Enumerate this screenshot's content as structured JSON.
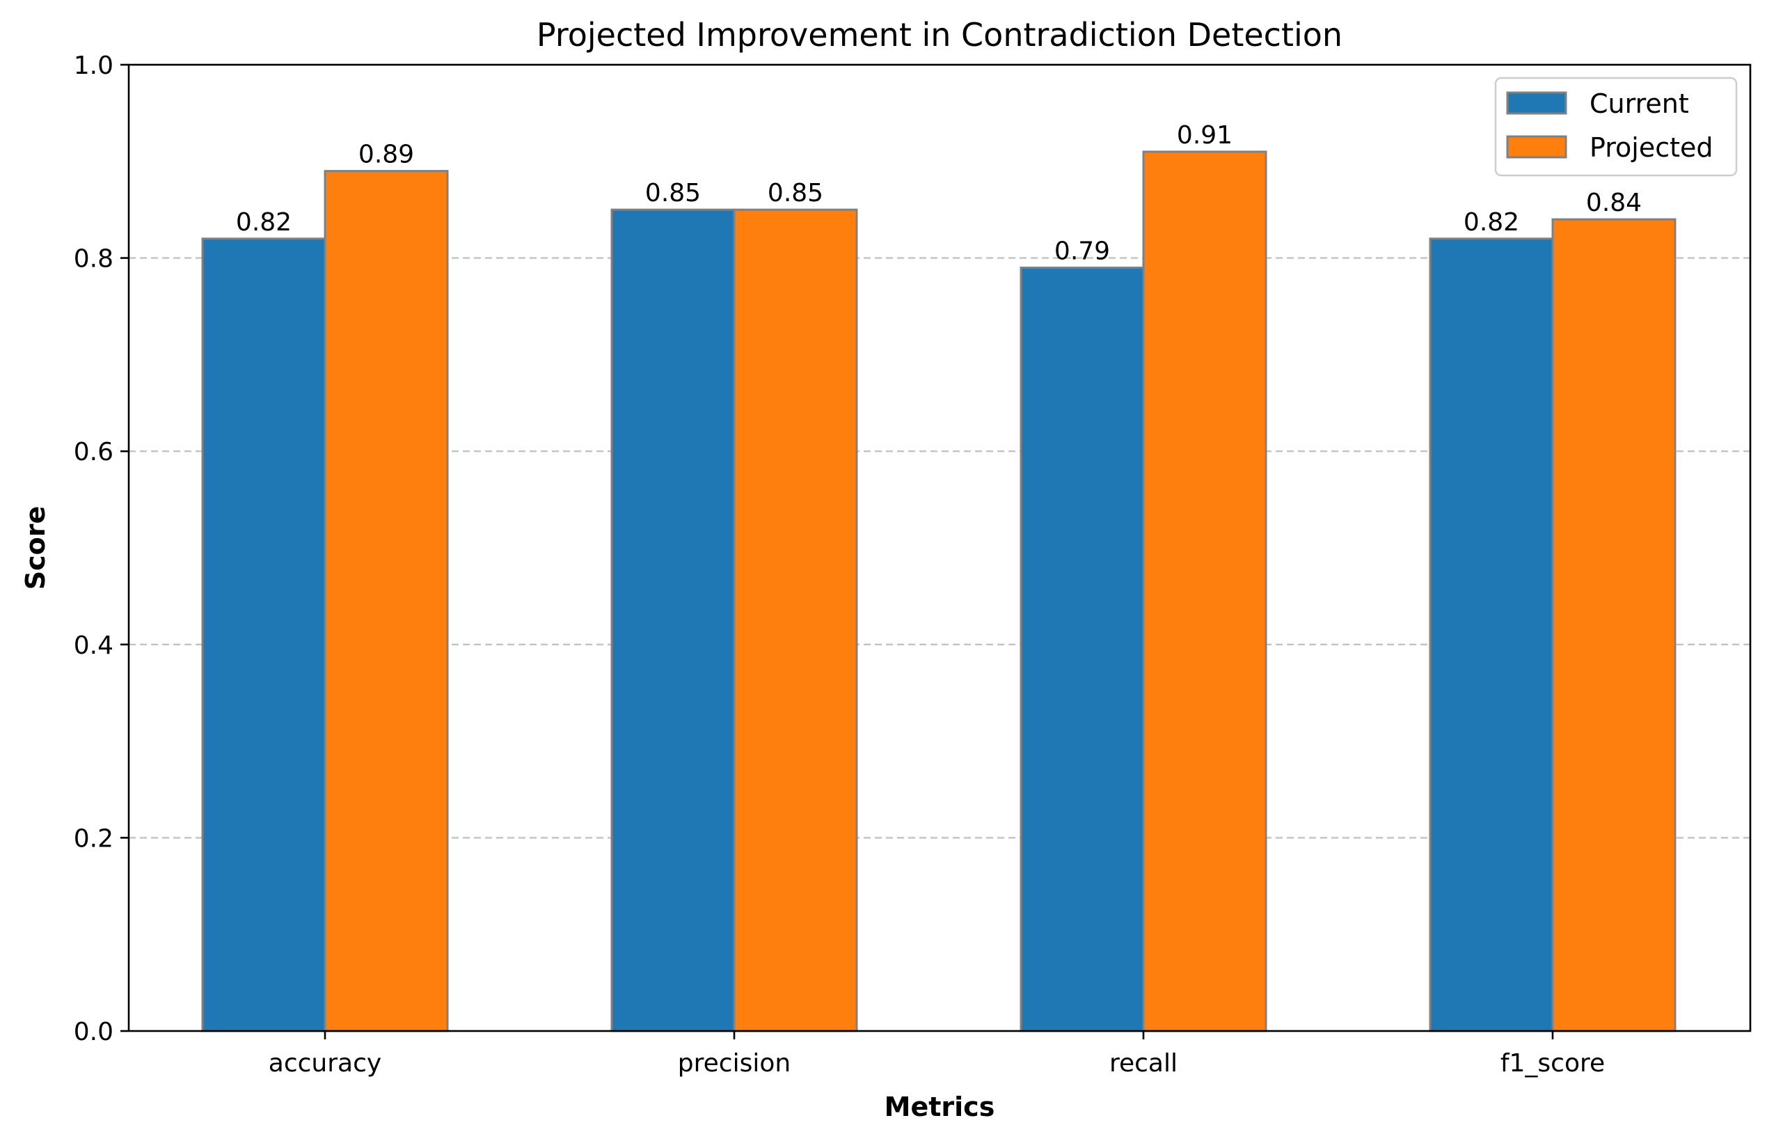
{
  "chart_data": {
    "type": "bar",
    "title": "Projected Improvement in Contradiction Detection",
    "xlabel": "Metrics",
    "ylabel": "Score",
    "categories": [
      "accuracy",
      "precision",
      "recall",
      "f1_score"
    ],
    "series": [
      {
        "name": "Current",
        "values": [
          0.82,
          0.85,
          0.79,
          0.82
        ],
        "color": "#1f77b4"
      },
      {
        "name": "Projected",
        "values": [
          0.89,
          0.85,
          0.91,
          0.84
        ],
        "color": "#ff7f0e"
      }
    ],
    "ylim": [
      0,
      1.0
    ],
    "yticks": [
      "0.0",
      "0.2",
      "0.4",
      "0.6",
      "0.8",
      "1.0"
    ],
    "grid": "y-dashed",
    "legend_position": "top-right",
    "bar_edge_color": "#808080"
  }
}
